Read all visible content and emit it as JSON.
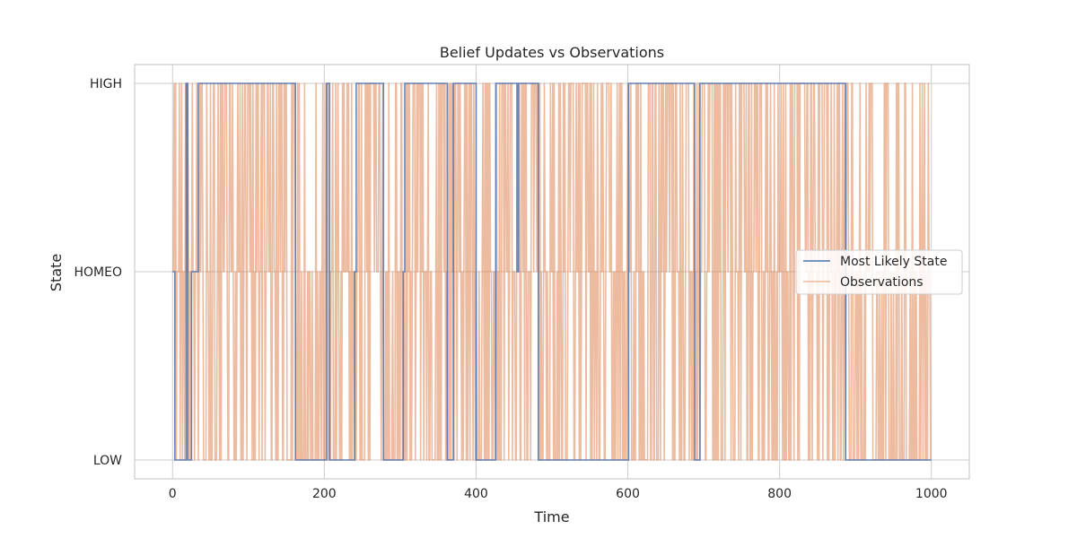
{
  "chart_data": {
    "type": "line",
    "title": "Belief Updates vs Observations",
    "xlabel": "Time",
    "ylabel": "State",
    "xlim": [
      -50,
      1050
    ],
    "ylim": [
      -0.1,
      2.1
    ],
    "x_ticks": [
      0,
      200,
      400,
      600,
      800,
      1000
    ],
    "x_tick_labels": [
      "0",
      "200",
      "400",
      "600",
      "800",
      "1000"
    ],
    "y_ticks": [
      0,
      1,
      2
    ],
    "y_tick_labels": [
      "LOW",
      "HOMEO",
      "HIGH"
    ],
    "grid": true,
    "legend": {
      "placement": "center-right",
      "entries": [
        "Most Likely State",
        "Observations"
      ]
    },
    "colors": {
      "most_likely": "#4c72b0",
      "observations": "#dd8452",
      "grid": "#cccccc",
      "frame": "#cccccc"
    },
    "series": [
      {
        "name": "Most Likely State",
        "color": "#4c72b0",
        "step_points": [
          [
            0,
            1
          ],
          [
            3,
            0
          ],
          [
            18,
            2
          ],
          [
            20,
            0
          ],
          [
            25,
            1
          ],
          [
            34,
            2
          ],
          [
            162,
            0
          ],
          [
            203,
            2
          ],
          [
            207,
            0
          ],
          [
            240,
            1
          ],
          [
            242,
            2
          ],
          [
            278,
            0
          ],
          [
            304,
            1
          ],
          [
            306,
            2
          ],
          [
            362,
            0
          ],
          [
            370,
            2
          ],
          [
            400,
            0
          ],
          [
            426,
            2
          ],
          [
            454,
            1
          ],
          [
            456,
            2
          ],
          [
            482,
            0
          ],
          [
            601,
            2
          ],
          [
            688,
            0
          ],
          [
            695,
            2
          ],
          [
            887,
            0
          ],
          [
            1000,
            0
          ]
        ]
      },
      {
        "name": "Observations",
        "color": "#dd8452",
        "length": 1000
      }
    ]
  }
}
